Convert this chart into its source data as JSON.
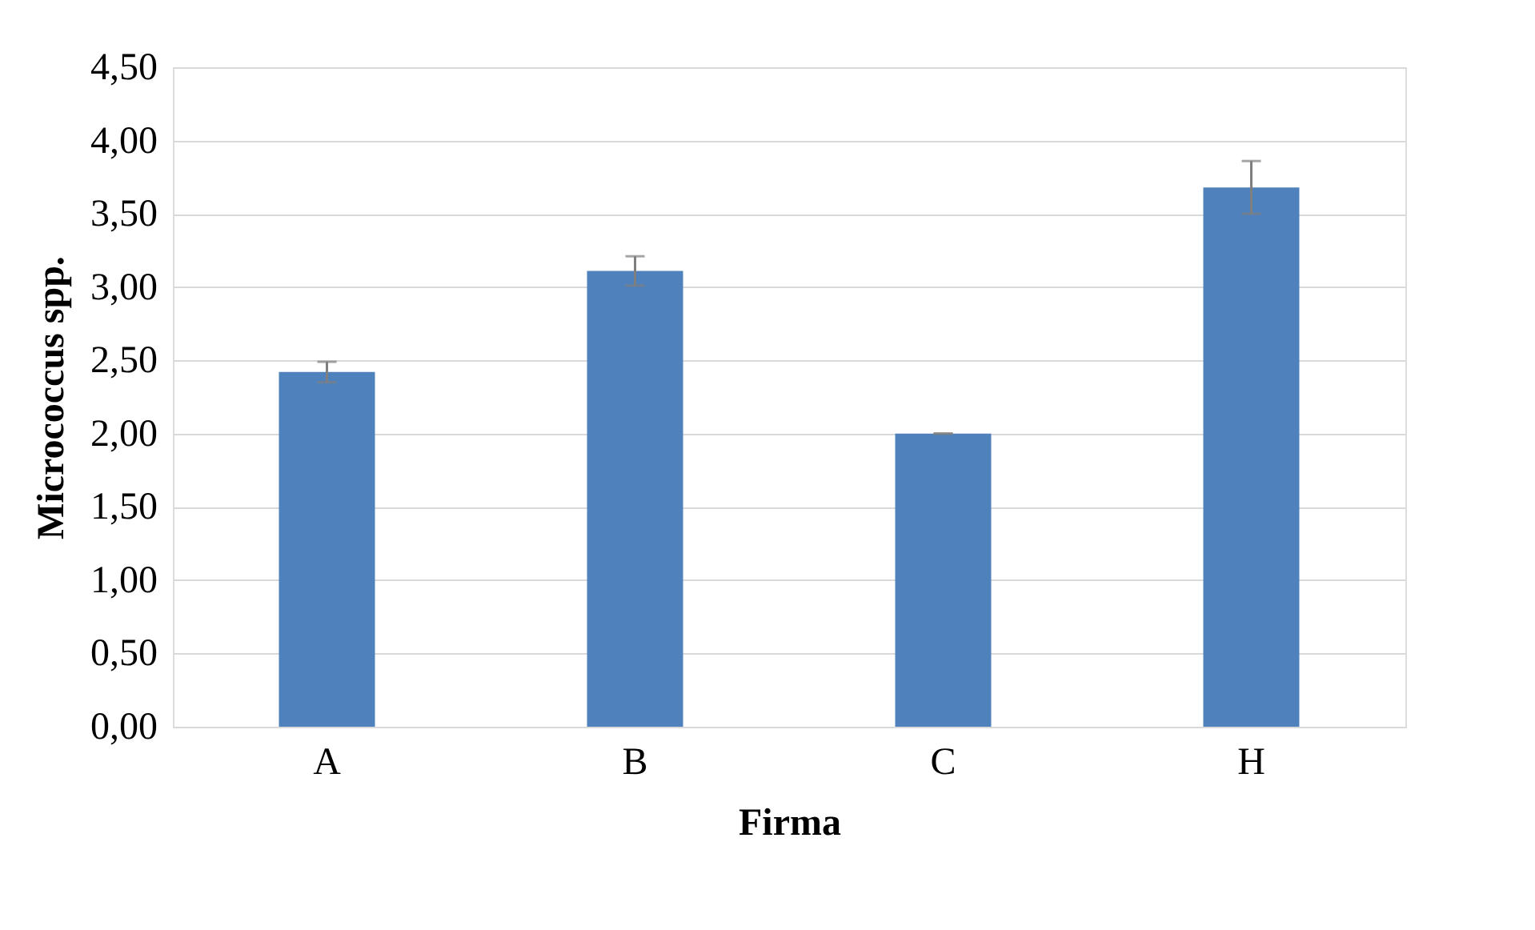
{
  "chart_data": {
    "type": "bar",
    "xlabel": "Firma",
    "ylabel": "Micrococcus spp.",
    "categories": [
      "A",
      "B",
      "C",
      "H"
    ],
    "values": [
      2.42,
      3.11,
      2.0,
      3.68
    ],
    "errors": [
      0.07,
      0.1,
      0.0,
      0.18
    ],
    "color": "#4f81bd",
    "ylim": [
      0,
      4.5
    ],
    "yticks": [
      {
        "value": 0,
        "label": "0,00"
      },
      {
        "value": 0.5,
        "label": "0,50"
      },
      {
        "value": 1,
        "label": "1,00"
      },
      {
        "value": 1.5,
        "label": "1,50"
      },
      {
        "value": 2,
        "label": "2,00"
      },
      {
        "value": 2.5,
        "label": "2,50"
      },
      {
        "value": 3,
        "label": "3,00"
      },
      {
        "value": 3.5,
        "label": "3,50"
      },
      {
        "value": 4,
        "label": "4,00"
      },
      {
        "value": 4.5,
        "label": "4,50"
      }
    ],
    "grid": "y"
  }
}
